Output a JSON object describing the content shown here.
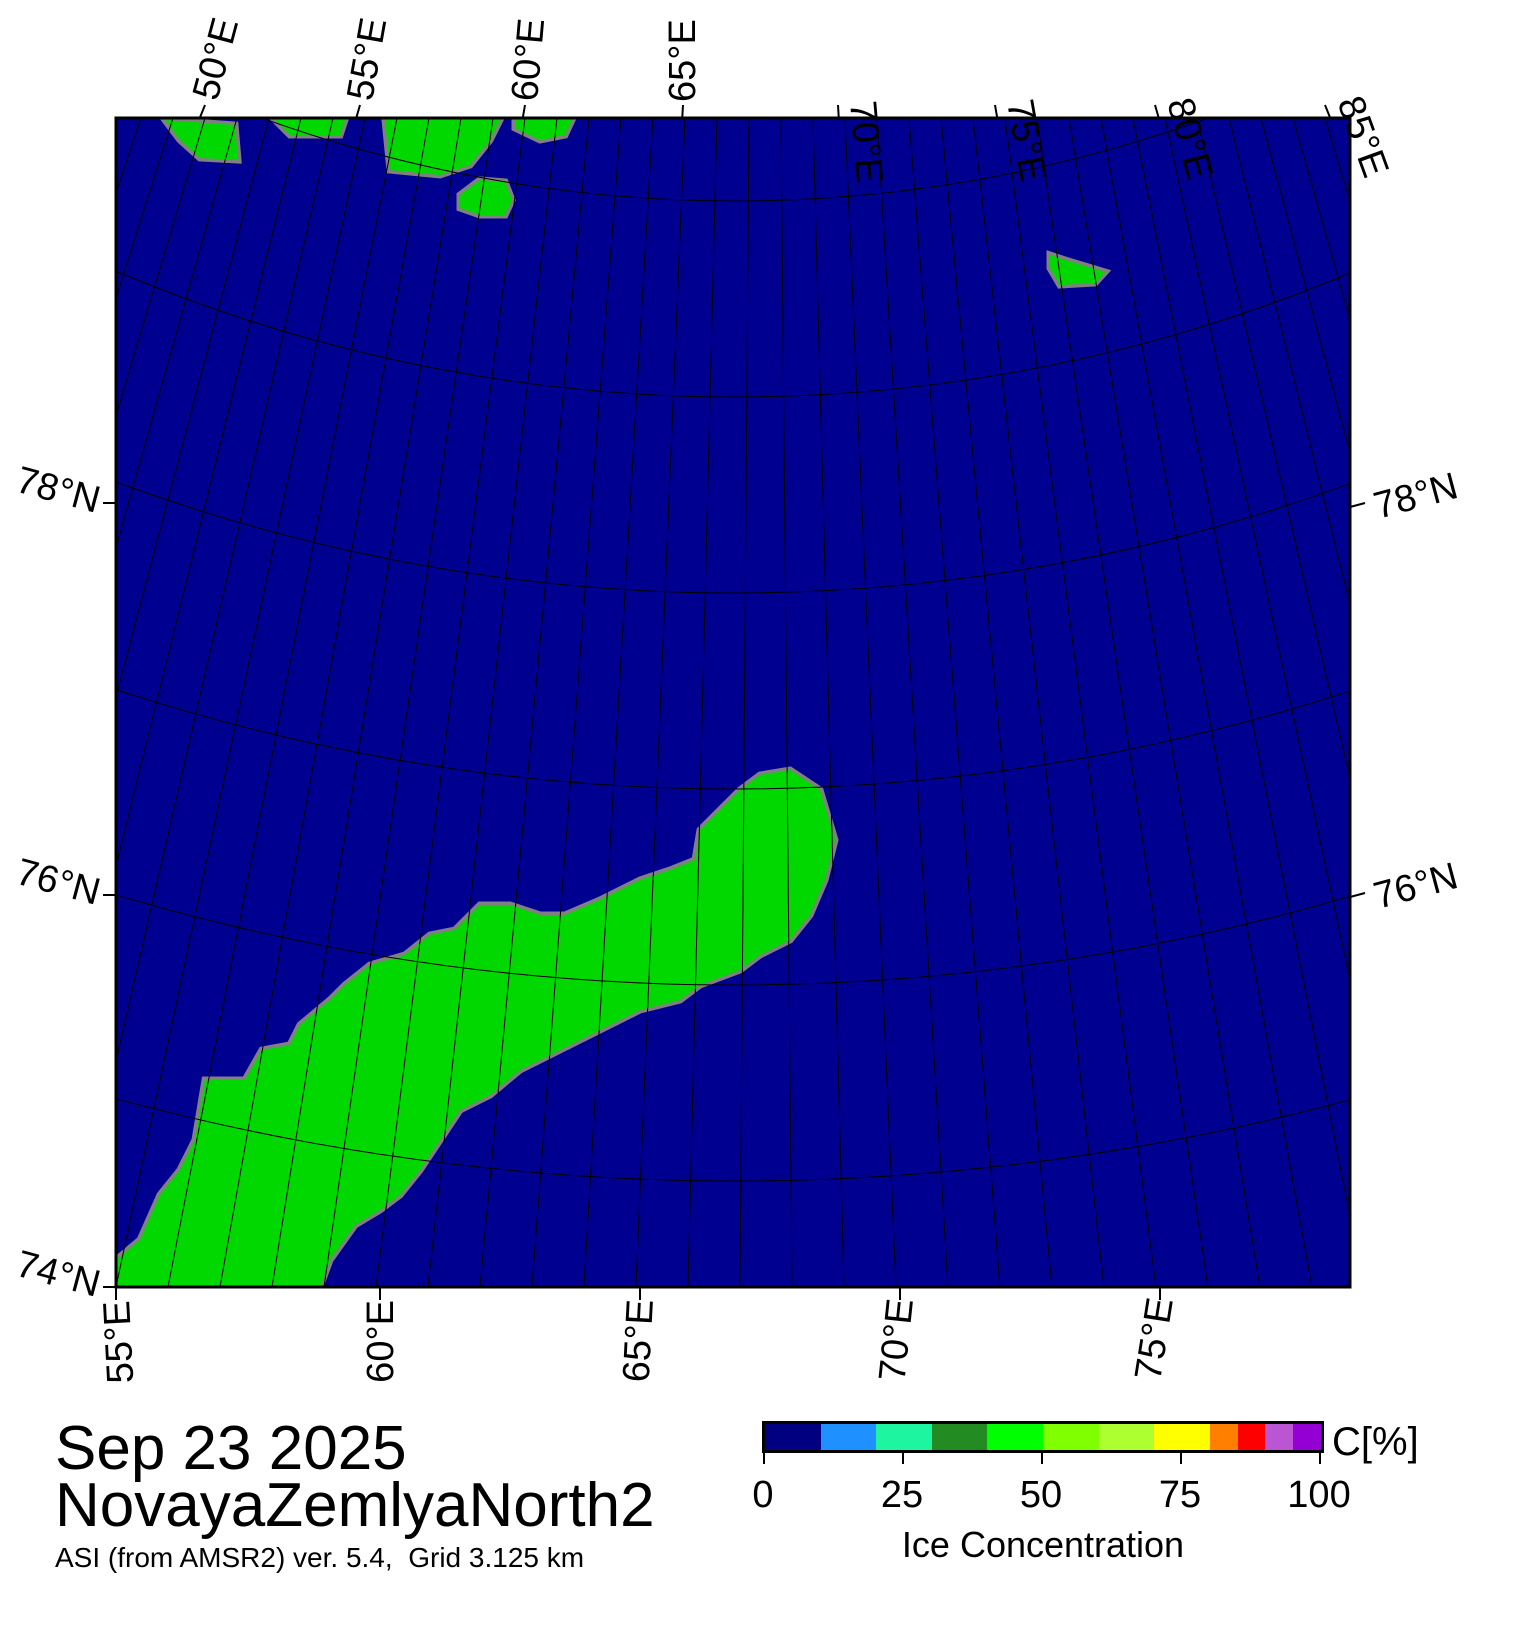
{
  "title_date": "Sep 23 2025",
  "region_name": "NovayaZemlyaNorth2",
  "caption": "ASI (from AMSR2) ver. 5.4,  Grid 3.125 km",
  "map": {
    "top_lon_labels": [
      "50°E",
      "55°E",
      "60°E",
      "65°E",
      "70°E",
      "75°E",
      "80°E",
      "85°E"
    ],
    "bottom_lon_labels": [
      "55°E",
      "60°E",
      "65°E",
      "70°E",
      "75°E"
    ],
    "left_lat_labels": [
      "78°N",
      "76°N",
      "74°N"
    ],
    "right_lat_labels": [
      "78°N",
      "76°N"
    ],
    "colors": {
      "ocean": "#000090",
      "land": "#00d800",
      "coast": "#808080",
      "grid": "#000000"
    }
  },
  "colorbar": {
    "title": "Ice Concentration",
    "unit": "C[%]",
    "ticks": [
      "0",
      "25",
      "50",
      "75",
      "100"
    ],
    "bins": [
      {
        "from": 0,
        "to": 10,
        "color": "#000080"
      },
      {
        "from": 10,
        "to": 20,
        "color": "#1e90ff"
      },
      {
        "from": 20,
        "to": 30,
        "color": "#1ef5a0"
      },
      {
        "from": 30,
        "to": 40,
        "color": "#228b22"
      },
      {
        "from": 40,
        "to": 50,
        "color": "#00ff00"
      },
      {
        "from": 50,
        "to": 60,
        "color": "#7fff00"
      },
      {
        "from": 60,
        "to": 70,
        "color": "#adff2f"
      },
      {
        "from": 70,
        "to": 80,
        "color": "#ffff00"
      },
      {
        "from": 80,
        "to": 85,
        "color": "#ff8000"
      },
      {
        "from": 85,
        "to": 90,
        "color": "#ff0000"
      },
      {
        "from": 90,
        "to": 95,
        "color": "#ba55d3"
      },
      {
        "from": 95,
        "to": 100,
        "color": "#9400d3"
      }
    ]
  }
}
